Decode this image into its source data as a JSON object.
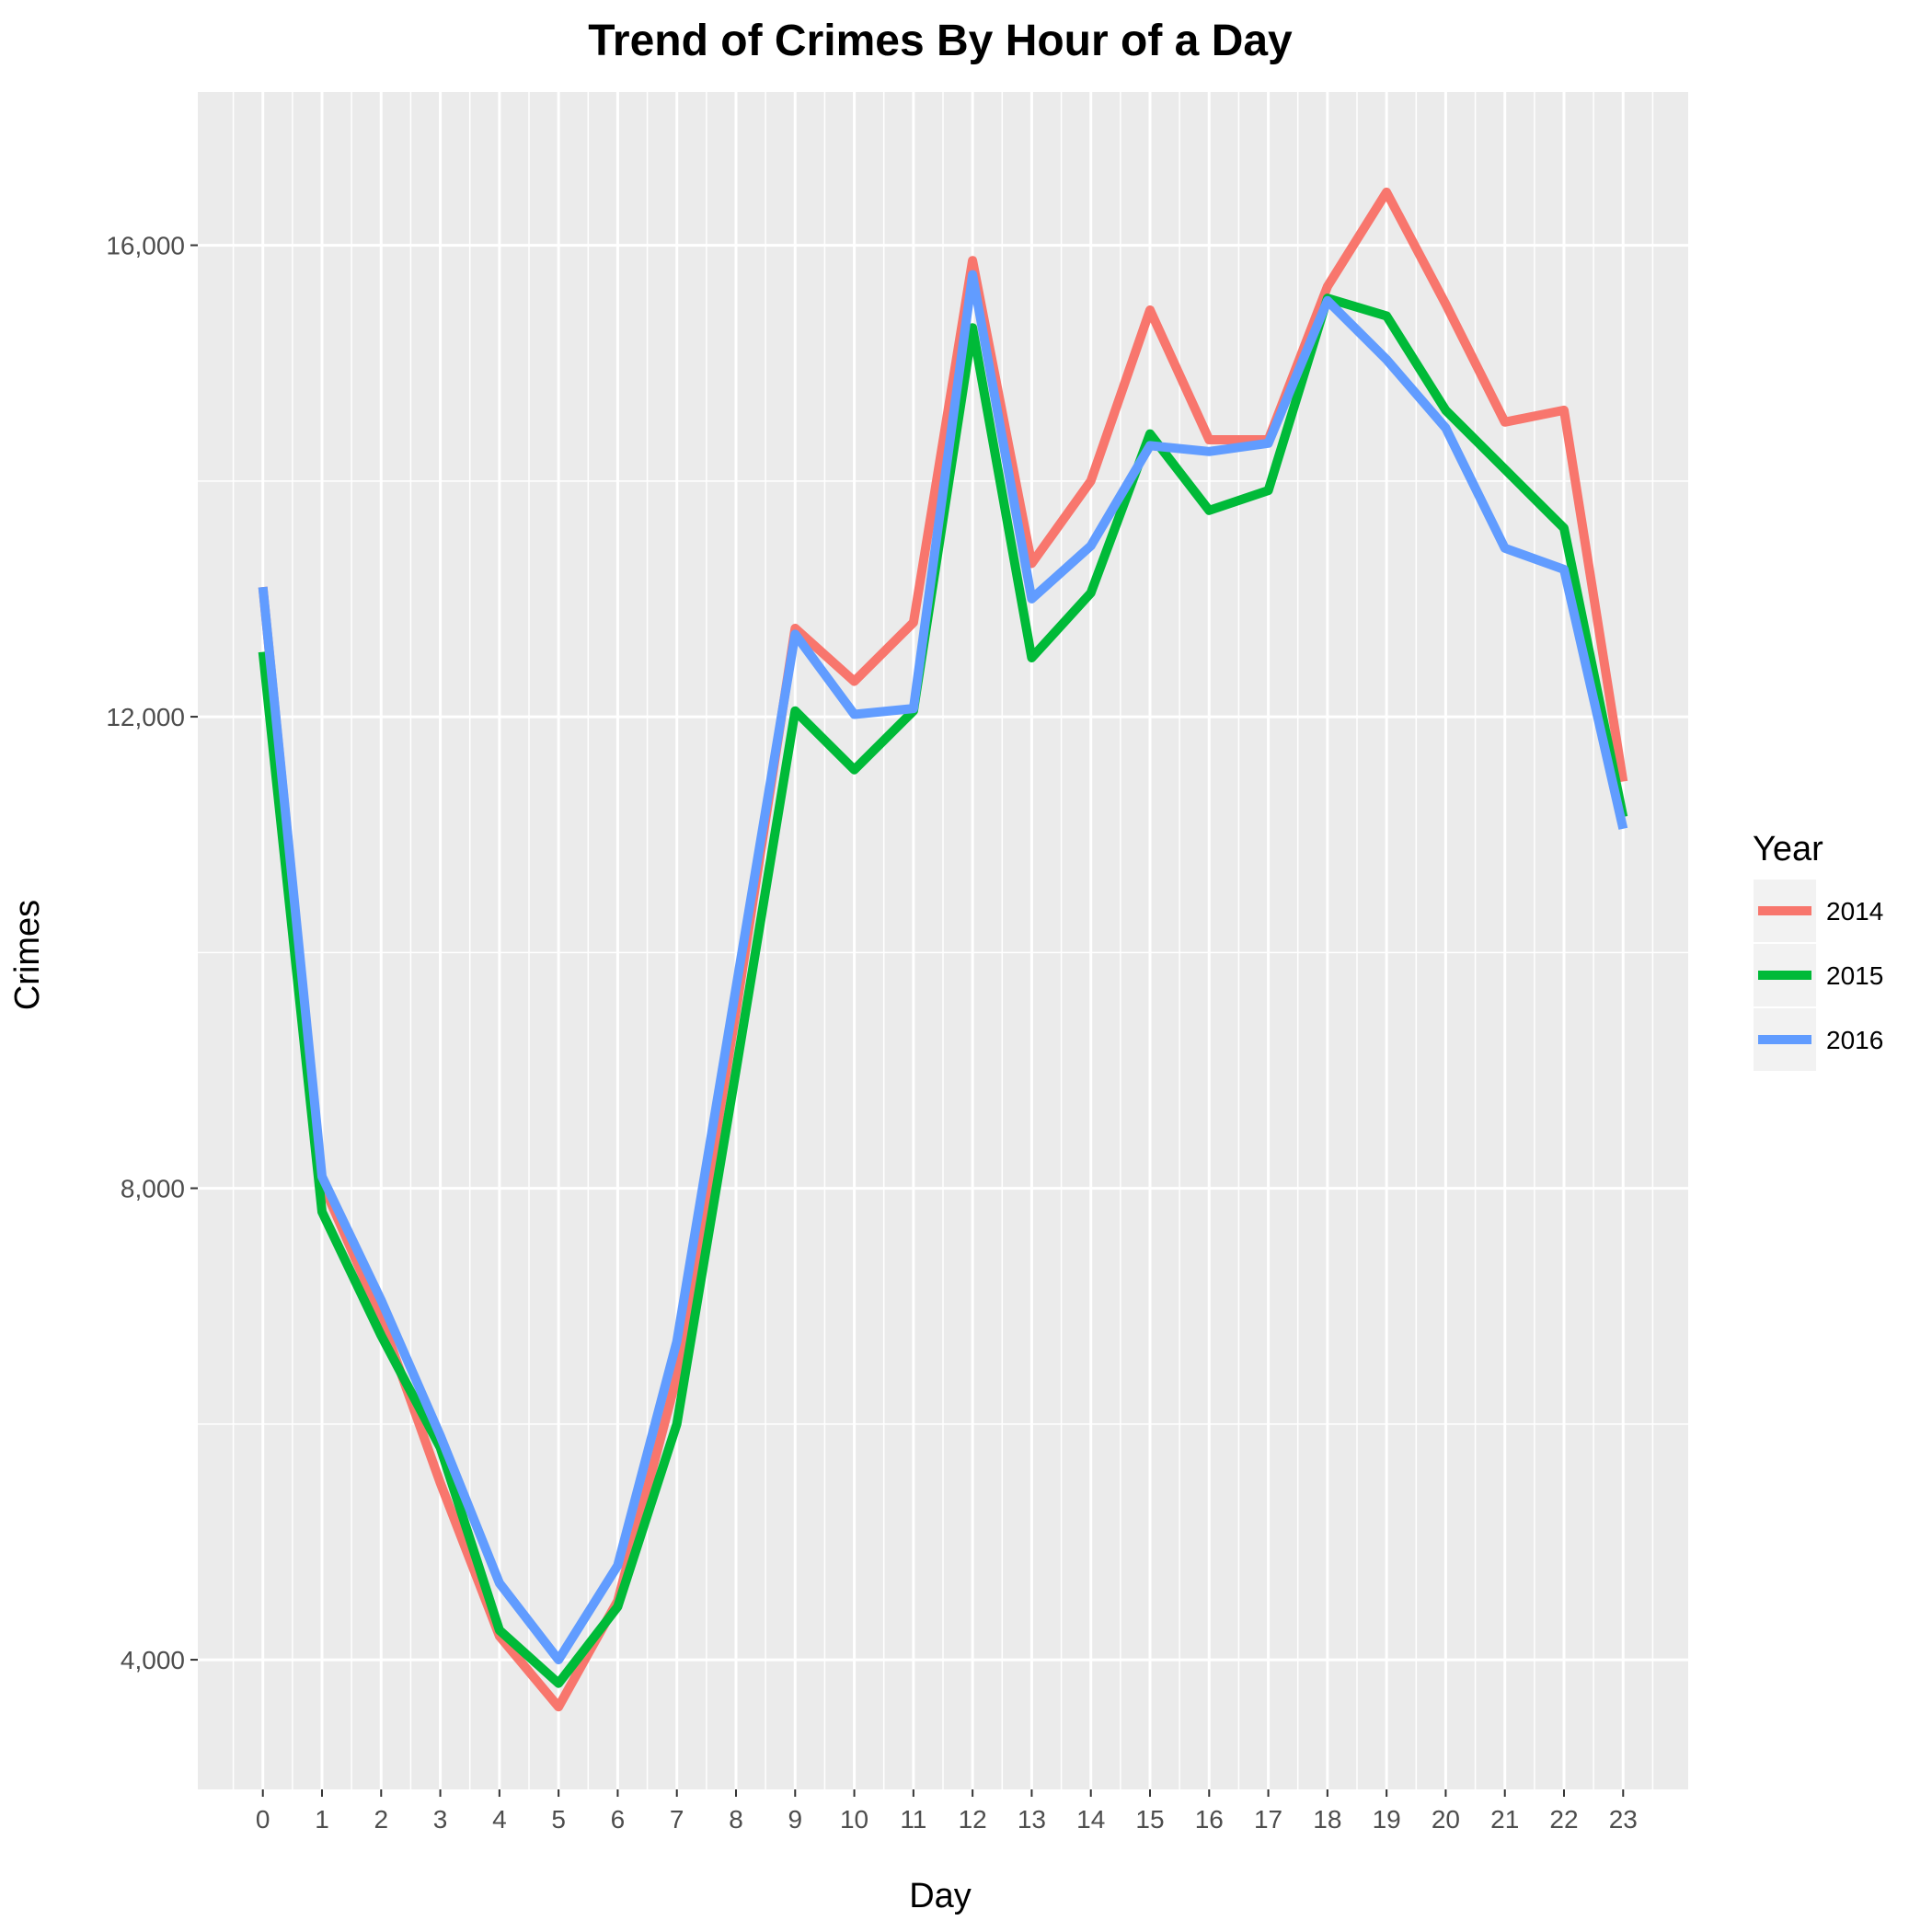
{
  "chart_data": {
    "type": "line",
    "title": "Trend of Crimes By Hour of a Day",
    "xlabel": "Day",
    "ylabel": "Crimes",
    "x": [
      0,
      1,
      2,
      3,
      4,
      5,
      6,
      7,
      8,
      9,
      10,
      11,
      12,
      13,
      14,
      15,
      16,
      17,
      18,
      19,
      20,
      21,
      22,
      23
    ],
    "ylim": [
      2900,
      17300
    ],
    "y_ticks": [
      4000,
      8000,
      12000,
      16000
    ],
    "y_tick_labels": [
      "4,000",
      "8,000",
      "12,000",
      "16,000"
    ],
    "grid": true,
    "legend_position": "right",
    "legend_title": "Year",
    "series": [
      {
        "name": "2014",
        "color": "#F8766D",
        "values": [
          13100,
          8050,
          6900,
          5500,
          4200,
          3600,
          4500,
          6400,
          9500,
          12750,
          12300,
          12800,
          15870,
          13300,
          14000,
          15450,
          14350,
          14350,
          15650,
          16450,
          15500,
          14500,
          14600,
          11450
        ]
      },
      {
        "name": "2015",
        "color": "#00BA38",
        "values": [
          12550,
          7800,
          6750,
          5800,
          4250,
          3800,
          4450,
          6000,
          9000,
          12050,
          11550,
          12050,
          15300,
          12500,
          13050,
          14400,
          13750,
          13920,
          15550,
          15400,
          14600,
          14100,
          13600,
          11150
        ]
      },
      {
        "name": "2016",
        "color": "#619CFF",
        "values": [
          13100,
          8100,
          7050,
          5900,
          4650,
          4000,
          4800,
          6700,
          9700,
          12700,
          12020,
          12070,
          15750,
          13000,
          13450,
          14300,
          14250,
          14320,
          15530,
          15030,
          14450,
          13430,
          13250,
          11050
        ]
      }
    ]
  }
}
